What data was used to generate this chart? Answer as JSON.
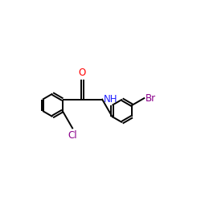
{
  "background_color": "#ffffff",
  "bond_color": "#000000",
  "atom_colors": {
    "O": "#ff0000",
    "N": "#2020ff",
    "Cl": "#8b008b",
    "Br": "#8b008b"
  },
  "bond_lw": 1.4,
  "font_size": 8.5,
  "figsize": [
    2.5,
    2.5
  ],
  "dpi": 100,
  "xlim": [
    0.0,
    8.5
  ],
  "ylim": [
    1.5,
    6.5
  ]
}
